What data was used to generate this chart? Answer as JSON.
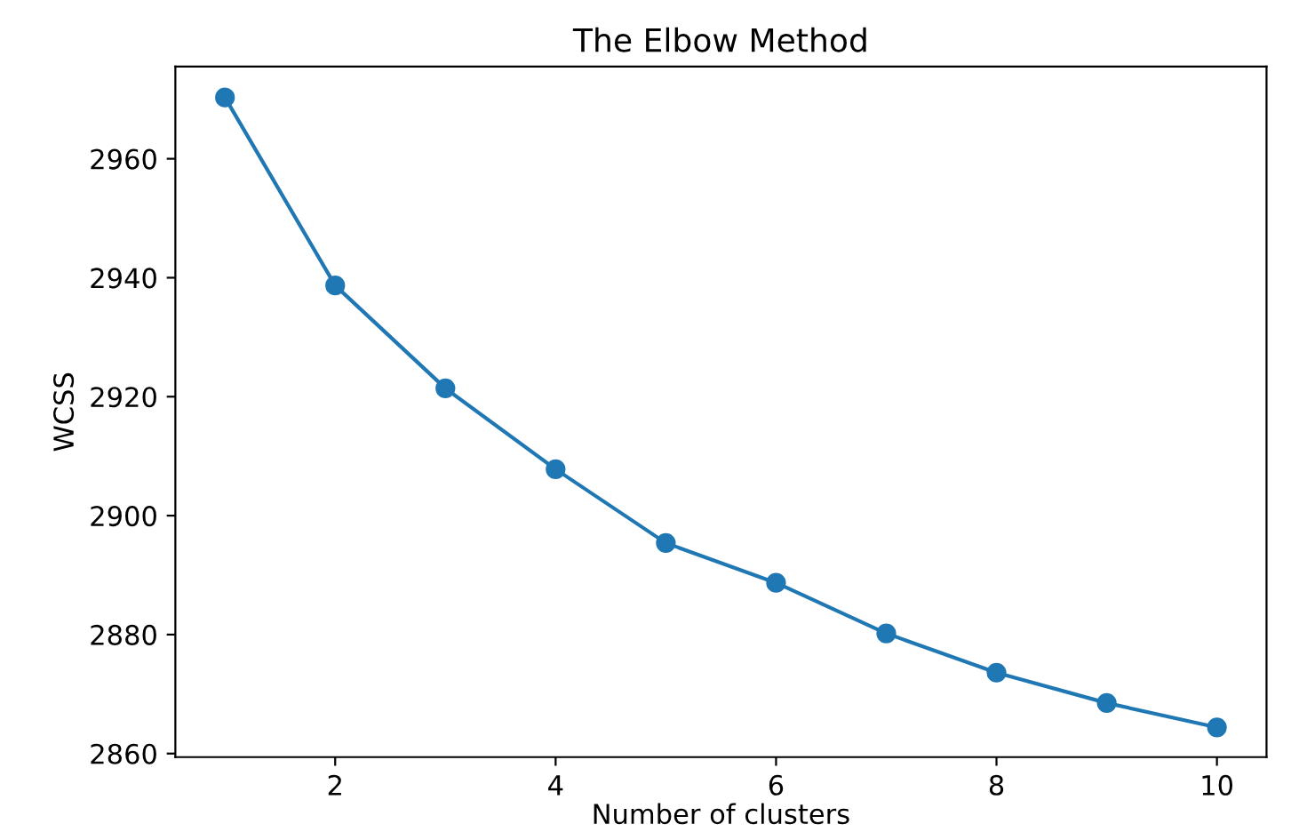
{
  "chart_data": {
    "type": "line",
    "title": "The Elbow Method",
    "xlabel": "Number of clusters",
    "ylabel": "WCSS",
    "x": [
      1,
      2,
      3,
      4,
      5,
      6,
      7,
      8,
      9,
      10
    ],
    "series": [
      {
        "color": "#1f77b4",
        "values": [
          2970.3,
          2938.7,
          2921.4,
          2907.8,
          2895.4,
          2888.7,
          2880.2,
          2873.6,
          2868.5,
          2864.4
        ]
      }
    ],
    "xlim": [
      0.55,
      10.45
    ],
    "ylim": [
      2859.4,
      2975.5
    ],
    "xticks": [
      2,
      4,
      6,
      8,
      10
    ],
    "yticks": [
      2860,
      2880,
      2900,
      2920,
      2940,
      2960
    ],
    "marker": "circle",
    "line_style": "solid",
    "grid": false,
    "legend": false
  }
}
